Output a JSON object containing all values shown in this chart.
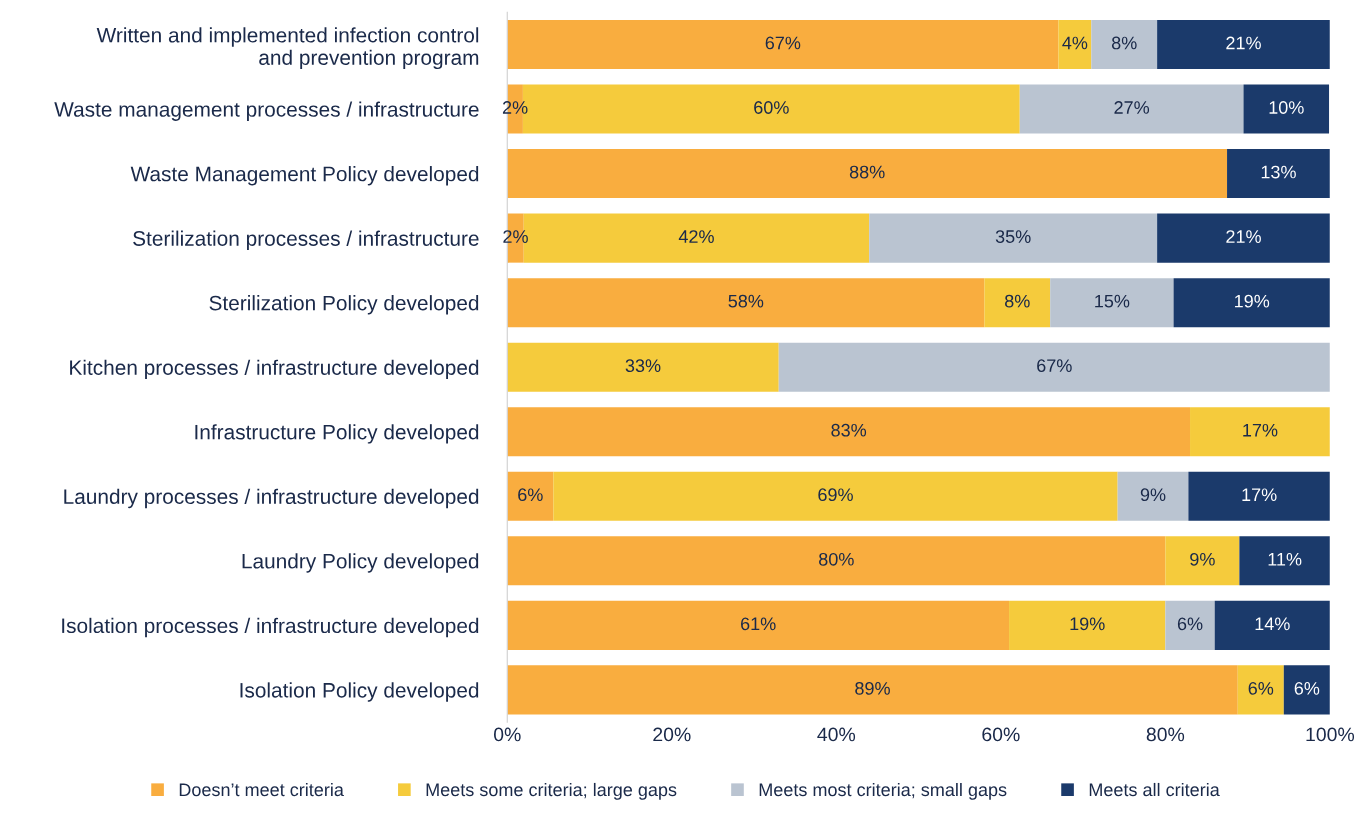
{
  "chart_data": {
    "type": "bar",
    "orientation": "horizontal",
    "stacked": true,
    "categories": [
      "Written and implemented infection control\nand prevention program",
      "Waste management processes / infrastructure",
      "Waste Management Policy developed",
      "Sterilization processes / infrastructure",
      "Sterilization Policy developed",
      "Kitchen processes / infrastructure developed",
      "Infrastructure Policy developed",
      "Laundry processes / infrastructure developed",
      "Laundry Policy developed",
      "Isolation processes / infrastructure developed",
      "Isolation Policy developed"
    ],
    "series": [
      {
        "name": "Doesn’t meet criteria",
        "color": "#f9ad3f",
        "values": [
          67,
          1.9,
          87.5,
          2,
          58,
          null,
          83,
          5.6,
          80,
          61,
          88.8
        ],
        "value_labels": [
          "67%",
          "2%",
          "88%",
          "2%",
          "58%",
          null,
          "83%",
          "6%",
          "80%",
          "61%",
          "89%"
        ]
      },
      {
        "name": "Meets some criteria; large gaps",
        "color": "#f5cb3c",
        "values": [
          4,
          60.4,
          null,
          42,
          8,
          33,
          17,
          68.6,
          9,
          19,
          5.6
        ],
        "value_labels": [
          "4%",
          "60%",
          null,
          "42%",
          "8%",
          "33%",
          "17%",
          "69%",
          "9%",
          "19%",
          "6%"
        ]
      },
      {
        "name": "Meets most criteria; small gaps",
        "color": "#bac4d1",
        "values": [
          8,
          27.2,
          null,
          35,
          15,
          67,
          null,
          8.6,
          null,
          6,
          null
        ],
        "value_labels": [
          "8%",
          "27%",
          null,
          "35%",
          "15%",
          "67%",
          null,
          "9%",
          null,
          "6%",
          null
        ]
      },
      {
        "name": "Meets all criteria",
        "color": "#1b3a6b",
        "values": [
          21,
          10.4,
          12.5,
          21,
          19,
          null,
          null,
          17.2,
          11,
          14,
          5.6
        ],
        "value_labels": [
          "21%",
          "10%",
          "13%",
          "21%",
          "19%",
          null,
          null,
          "17%",
          "11%",
          "14%",
          "6%"
        ]
      }
    ],
    "xlim": [
      0,
      100
    ],
    "xticks": [
      {
        "value": 0,
        "label": "0%"
      },
      {
        "value": 20,
        "label": "20%"
      },
      {
        "value": 40,
        "label": "40%"
      },
      {
        "value": 60,
        "label": "60%"
      },
      {
        "value": 80,
        "label": "80%"
      },
      {
        "value": 100,
        "label": "100%"
      }
    ],
    "grid": false,
    "legend": "bottom"
  }
}
